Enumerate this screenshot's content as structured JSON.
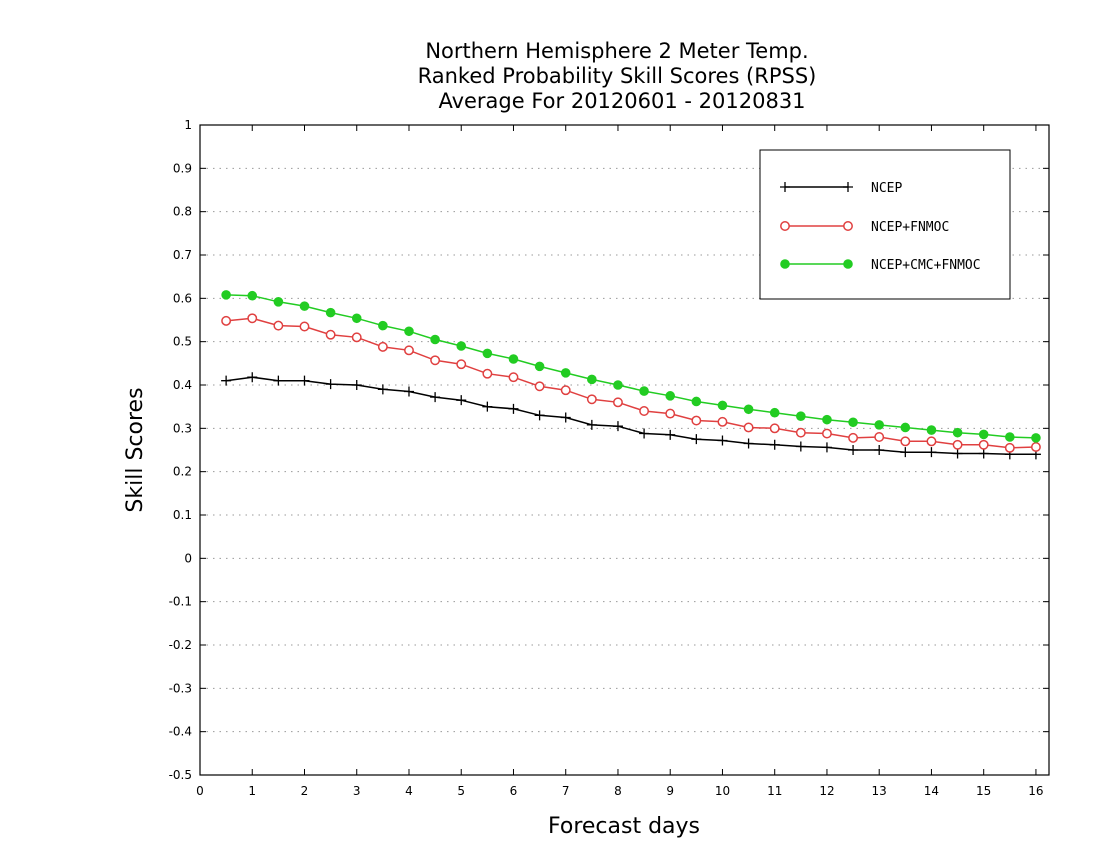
{
  "chart_data": {
    "type": "line",
    "title": [
      "Northern Hemisphere 2 Meter Temp.",
      "Ranked Probability Skill Scores (RPSS)",
      "Average For 20120601 - 20120831"
    ],
    "xlabel": "Forecast days",
    "ylabel": "Skill Scores",
    "xlim": [
      0,
      16.25
    ],
    "ylim": [
      -0.5,
      1.0
    ],
    "xticks": [
      0,
      1,
      2,
      3,
      4,
      5,
      6,
      7,
      8,
      9,
      10,
      11,
      12,
      13,
      14,
      15,
      16
    ],
    "yticks": [
      -0.5,
      -0.4,
      -0.3,
      -0.2,
      -0.1,
      0,
      0.1,
      0.2,
      0.3,
      0.4,
      0.5,
      0.6,
      0.7,
      0.8,
      0.9,
      1
    ],
    "ytick_labels": [
      "-0.5",
      "-0.4",
      "-0.3",
      "-0.2",
      "-0.1",
      "0",
      "0.1",
      "0.2",
      "0.3",
      "0.4",
      "0.5",
      "0.6",
      "0.7",
      "0.8",
      "0.9",
      "1"
    ],
    "grid": "horizontal dotted",
    "legend_position": "top-right",
    "x": [
      0.5,
      1,
      1.5,
      2,
      2.5,
      3,
      3.5,
      4,
      4.5,
      5,
      5.5,
      6,
      6.5,
      7,
      7.5,
      8,
      8.5,
      9,
      9.5,
      10,
      10.5,
      11,
      11.5,
      12,
      12.5,
      13,
      13.5,
      14,
      14.5,
      15,
      15.5,
      16
    ],
    "series": [
      {
        "name": "NCEP",
        "color": "#000000",
        "marker": "plus",
        "values": [
          0.41,
          0.418,
          0.41,
          0.41,
          0.402,
          0.4,
          0.39,
          0.385,
          0.372,
          0.365,
          0.35,
          0.345,
          0.33,
          0.325,
          0.308,
          0.305,
          0.288,
          0.285,
          0.275,
          0.272,
          0.265,
          0.262,
          0.258,
          0.256,
          0.25,
          0.25,
          0.245,
          0.245,
          0.242,
          0.242,
          0.24,
          0.24
        ]
      },
      {
        "name": "NCEP+FNMOC",
        "color": "#e04040",
        "marker": "open-circle",
        "values": [
          0.548,
          0.554,
          0.537,
          0.535,
          0.516,
          0.51,
          0.488,
          0.48,
          0.457,
          0.448,
          0.426,
          0.418,
          0.397,
          0.388,
          0.367,
          0.36,
          0.34,
          0.334,
          0.318,
          0.315,
          0.302,
          0.3,
          0.29,
          0.288,
          0.278,
          0.28,
          0.27,
          0.27,
          0.262,
          0.262,
          0.255,
          0.257
        ]
      },
      {
        "name": "NCEP+CMC+FNMOC",
        "color": "#22cc22",
        "marker": "filled-circle",
        "values": [
          0.608,
          0.606,
          0.592,
          0.582,
          0.567,
          0.554,
          0.537,
          0.524,
          0.505,
          0.49,
          0.473,
          0.46,
          0.443,
          0.428,
          0.413,
          0.4,
          0.386,
          0.375,
          0.362,
          0.353,
          0.344,
          0.336,
          0.328,
          0.32,
          0.314,
          0.308,
          0.302,
          0.296,
          0.29,
          0.286,
          0.28,
          0.278
        ]
      }
    ]
  }
}
